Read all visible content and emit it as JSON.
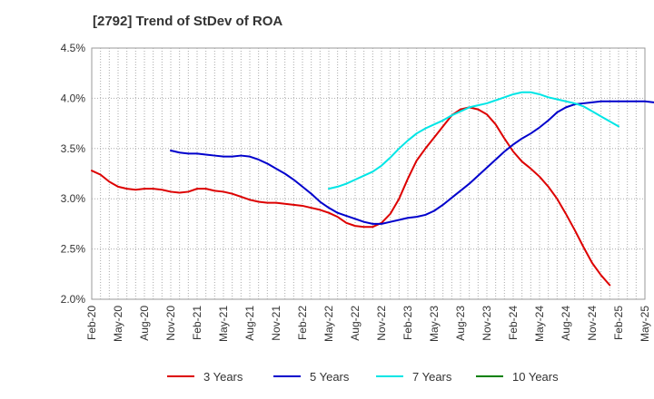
{
  "chart_data": {
    "type": "line",
    "title": "[2792]  Trend of StDev of ROA",
    "xlabel": "",
    "ylabel": "",
    "ylim": [
      2.0,
      4.5
    ],
    "y_ticks": [
      "2.0%",
      "2.5%",
      "3.0%",
      "3.5%",
      "4.0%",
      "4.5%"
    ],
    "x_ticks": [
      "Feb-20",
      "May-20",
      "Aug-20",
      "Nov-20",
      "Feb-21",
      "May-21",
      "Aug-21",
      "Nov-21",
      "Feb-22",
      "May-22",
      "Aug-22",
      "Nov-22",
      "Feb-23",
      "May-23",
      "Aug-23",
      "Nov-23",
      "Feb-24",
      "May-24",
      "Aug-24",
      "Nov-24",
      "Feb-25",
      "May-25"
    ],
    "grid": true,
    "legend_position": "bottom",
    "series": [
      {
        "name": "3 Years",
        "color": "#dd0000",
        "start_index": 0,
        "values": [
          3.28,
          3.24,
          3.17,
          3.12,
          3.1,
          3.09,
          3.1,
          3.1,
          3.09,
          3.07,
          3.06,
          3.07,
          3.1,
          3.1,
          3.08,
          3.07,
          3.05,
          3.02,
          2.99,
          2.97,
          2.96,
          2.96,
          2.95,
          2.94,
          2.93,
          2.91,
          2.89,
          2.86,
          2.82,
          2.76,
          2.73,
          2.72,
          2.72,
          2.76,
          2.85,
          3.0,
          3.2,
          3.38,
          3.5,
          3.61,
          3.72,
          3.83,
          3.89,
          3.91,
          3.89,
          3.84,
          3.74,
          3.6,
          3.47,
          3.37,
          3.3,
          3.22,
          3.12,
          3.0,
          2.85,
          2.69,
          2.52,
          2.36,
          2.24,
          2.14
        ]
      },
      {
        "name": "5 Years",
        "color": "#0000cc",
        "start_index": 9,
        "values": [
          3.48,
          3.46,
          3.45,
          3.45,
          3.44,
          3.43,
          3.42,
          3.42,
          3.43,
          3.42,
          3.39,
          3.35,
          3.3,
          3.25,
          3.19,
          3.12,
          3.05,
          2.97,
          2.91,
          2.86,
          2.83,
          2.8,
          2.77,
          2.75,
          2.75,
          2.77,
          2.79,
          2.81,
          2.82,
          2.84,
          2.88,
          2.94,
          3.01,
          3.08,
          3.15,
          3.23,
          3.31,
          3.39,
          3.47,
          3.54,
          3.6,
          3.65,
          3.71,
          3.78,
          3.86,
          3.91,
          3.94,
          3.95,
          3.96,
          3.97,
          3.97,
          3.97,
          3.97,
          3.97,
          3.97,
          3.96,
          3.96
        ]
      },
      {
        "name": "7 Years",
        "color": "#00e5e5",
        "start_index": 27,
        "values": [
          3.1,
          3.12,
          3.15,
          3.19,
          3.23,
          3.27,
          3.33,
          3.41,
          3.5,
          3.58,
          3.65,
          3.7,
          3.74,
          3.78,
          3.83,
          3.87,
          3.91,
          3.93,
          3.95,
          3.98,
          4.01,
          4.04,
          4.06,
          4.06,
          4.04,
          4.01,
          3.99,
          3.97,
          3.95,
          3.92,
          3.87,
          3.82,
          3.77,
          3.72
        ]
      },
      {
        "name": "10 Years",
        "color": "#008000",
        "start_index": 0,
        "values": []
      }
    ]
  }
}
